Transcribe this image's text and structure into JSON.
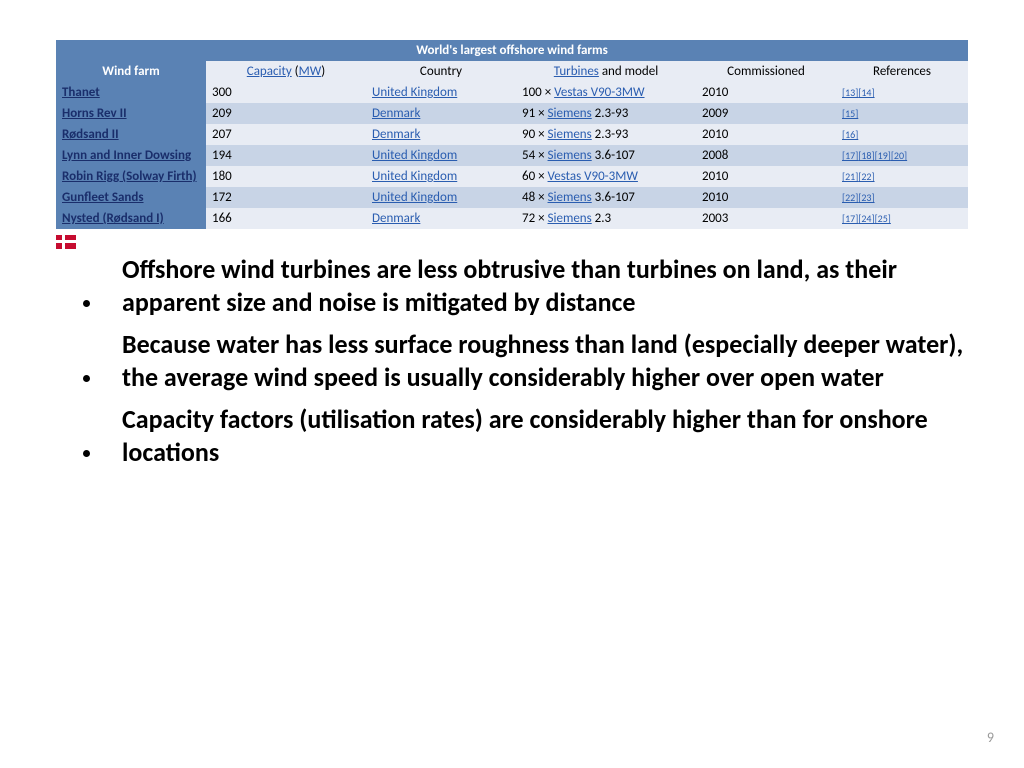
{
  "table": {
    "title": "World's largest offshore wind farms",
    "headers": {
      "wind_farm": "Wind farm",
      "capacity_link": "Capacity",
      "capacity_open": " (",
      "mw_link": "MW",
      "capacity_close": ")",
      "country": "Country",
      "turbines_link": "Turbines",
      "turbines_suffix": " and model",
      "commissioned": "Commissioned",
      "references": "References"
    },
    "rows": [
      {
        "name": "Thanet",
        "capacity": "300",
        "country": "United Kingdom",
        "turbines_prefix": "100 × ",
        "turbines_link": "Vestas V90-3MW",
        "turbines_suffix": "",
        "commissioned": "2010",
        "refs": [
          "[13]",
          "[14]"
        ]
      },
      {
        "name": "Horns Rev II",
        "capacity": "209",
        "country": "Denmark",
        "turbines_prefix": "91 × ",
        "turbines_link": "Siemens",
        "turbines_suffix": " 2.3-93",
        "commissioned": "2009",
        "refs": [
          "[15]"
        ]
      },
      {
        "name": "Rødsand II",
        "capacity": "207",
        "country": "Denmark",
        "turbines_prefix": "90 × ",
        "turbines_link": "Siemens",
        "turbines_suffix": " 2.3-93",
        "commissioned": "2010",
        "refs": [
          "[16]"
        ]
      },
      {
        "name": "Lynn and Inner Dowsing",
        "capacity": "194",
        "country": "United Kingdom",
        "turbines_prefix": "54 × ",
        "turbines_link": "Siemens",
        "turbines_suffix": " 3.6-107",
        "commissioned": "2008",
        "refs": [
          "[17]",
          "[18]",
          "[19]",
          "[20]"
        ]
      },
      {
        "name": "Robin Rigg (Solway Firth)",
        "capacity": "180",
        "country": "United Kingdom",
        "turbines_prefix": "60 × ",
        "turbines_link": "Vestas V90-3MW",
        "turbines_suffix": "",
        "commissioned": "2010",
        "refs": [
          "[21]",
          "[22]"
        ]
      },
      {
        "name": "Gunfleet Sands",
        "capacity": "172",
        "country": "United Kingdom",
        "turbines_prefix": "48 × ",
        "turbines_link": "Siemens",
        "turbines_suffix": " 3.6-107",
        "commissioned": "2010",
        "refs": [
          "[22]",
          "[23]"
        ]
      },
      {
        "name": "Nysted (Rødsand I)",
        "capacity": "166",
        "country": "Denmark",
        "turbines_prefix": "72 × ",
        "turbines_link": "Siemens",
        "turbines_suffix": " 2.3",
        "commissioned": "2003",
        "refs": [
          "[17]",
          "[24]",
          "[25]"
        ]
      }
    ],
    "colors": {
      "header_bg": "#5a82b4",
      "row_even_bg": "#e8ecf4",
      "row_odd_bg": "#c8d4e6",
      "link_color": "#2a5db0",
      "name_link_color": "#1a2e6b"
    }
  },
  "bullets": [
    "Offshore wind turbines are less obtrusive than turbines on land, as their apparent size and noise is mitigated by distance",
    "Because water has less surface roughness than land (especially deeper water), the average wind speed is usually considerably higher over open water",
    "Capacity factors (utilisation rates) are considerably higher than for onshore locations"
  ],
  "page_number": "9",
  "flag": {
    "bg": "#c60c30",
    "cross": "#ffffff"
  }
}
